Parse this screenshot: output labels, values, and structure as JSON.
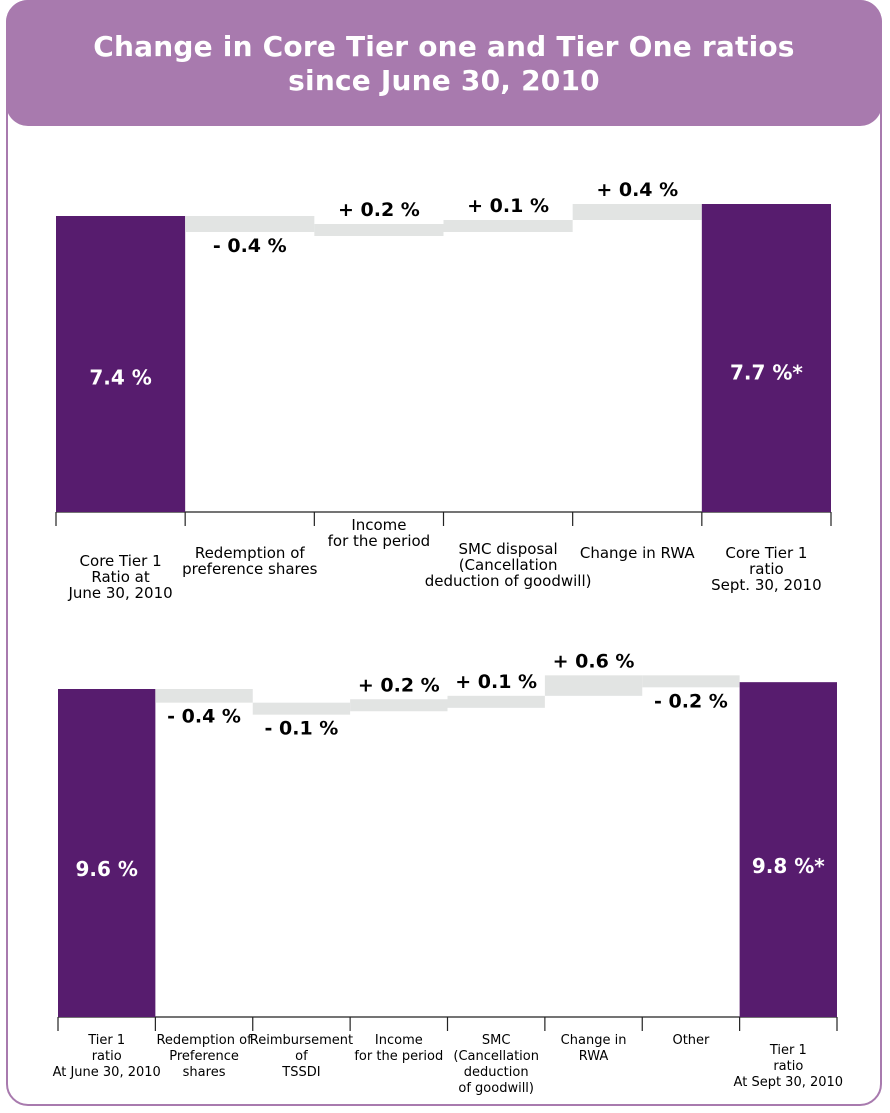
{
  "header": {
    "title_line1": "Change in Core Tier one and Tier One ratios",
    "title_line2": "since June 30, 2010"
  },
  "colors": {
    "header_bg": "#a87aae",
    "bar": "#571c6e",
    "step": "#e2e4e3"
  },
  "chart_data": [
    {
      "type": "bar",
      "subtype": "waterfall",
      "title": "",
      "categories": [
        [
          "Core Tier 1",
          "Ratio at",
          "June 30, 2010"
        ],
        [
          "Redemption of",
          "preference shares"
        ],
        [
          "Income",
          "for the period"
        ],
        [
          "SMC  disposal",
          "(Cancellation",
          "deduction of goodwill)"
        ],
        [
          "Change in RWA"
        ],
        [
          "Core Tier 1",
          "ratio",
          "Sept. 30, 2010"
        ]
      ],
      "values": [
        7.4,
        -0.4,
        0.2,
        0.1,
        0.4,
        7.7
      ],
      "kinds": [
        "total",
        "delta",
        "delta",
        "delta",
        "delta",
        "total"
      ],
      "value_labels": [
        "7.4 %",
        "- 0.4 %",
        "+ 0.2 %",
        "+ 0.1 %",
        "+ 0.4 %",
        "7.7 %*"
      ],
      "ylim": [
        0,
        8.5
      ]
    },
    {
      "type": "bar",
      "subtype": "waterfall",
      "title": "",
      "categories": [
        [
          "Tier 1",
          "ratio",
          "At June 30, 2010"
        ],
        [
          "Redemption of",
          "Preference",
          "shares"
        ],
        [
          "Reimbursement",
          "of",
          "TSSDI"
        ],
        [
          "Income",
          "for the period"
        ],
        [
          "SMC",
          "(Cancellation",
          "deduction",
          "of  goodwill)"
        ],
        [
          "Change in",
          "RWA"
        ],
        [
          "Other"
        ],
        [
          "Tier 1",
          "ratio",
          "At Sept 30, 2010"
        ]
      ],
      "values": [
        9.6,
        -0.4,
        -0.1,
        0.2,
        0.1,
        0.6,
        -0.2,
        9.8
      ],
      "kinds": [
        "total",
        "delta",
        "delta",
        "delta",
        "delta",
        "delta",
        "delta",
        "total"
      ],
      "value_labels": [
        "9.6 %",
        "- 0.4 %",
        "- 0.1 %",
        "+ 0.2 %",
        "+ 0.1 %",
        "+ 0.6 %",
        "- 0.2 %",
        "9.8 %*"
      ],
      "ylim": [
        0,
        10.8
      ]
    }
  ]
}
